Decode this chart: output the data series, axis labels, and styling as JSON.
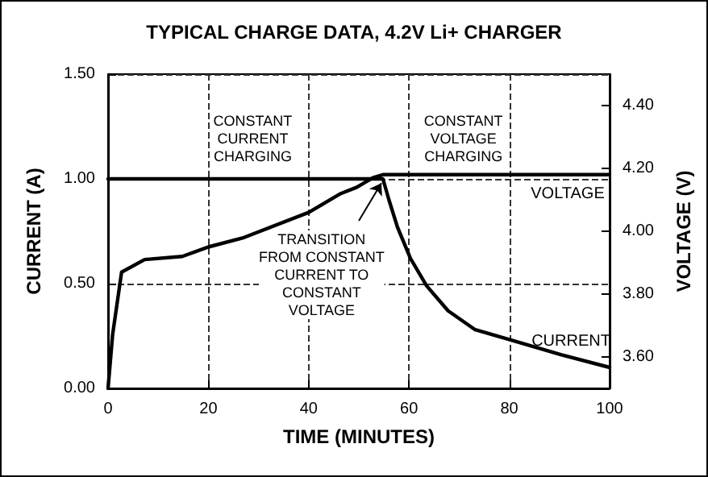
{
  "chart_data": {
    "type": "line",
    "title": "TYPICAL CHARGE DATA, 4.2V Li+ CHARGER",
    "xlabel": "TIME (MINUTES)",
    "ylabel": "CURRENT (A)",
    "y2label": "VOLTAGE (V)",
    "xlim": [
      0,
      100
    ],
    "xticks": [
      0,
      20,
      40,
      60,
      80,
      100
    ],
    "ylim": [
      0,
      1.5
    ],
    "yticks": [
      {
        "value": 0,
        "label": "0.00"
      },
      {
        "value": 0.5,
        "label": "0.50"
      },
      {
        "value": 1,
        "label": "1.00"
      },
      {
        "value": 1.5,
        "label": "1.50"
      }
    ],
    "y2lim": [
      3.5,
      4.5
    ],
    "y2ticks": [
      {
        "value": 3.6,
        "label": "3.60"
      },
      {
        "value": 3.8,
        "label": "3.80"
      },
      {
        "value": 4,
        "label": "4.00"
      },
      {
        "value": 4.2,
        "label": "4.20"
      },
      {
        "value": 4.4,
        "label": "4.40"
      }
    ],
    "series": [
      {
        "name": "CURRENT",
        "color": "#000000",
        "x": [
          0,
          54.8,
          56,
          57.7,
          60.3,
          63.5,
          67.8,
          73.2,
          80.4,
          90.4,
          100
        ],
        "values": [
          1.0,
          1.0,
          0.9,
          0.77,
          0.62,
          0.49,
          0.37,
          0.28,
          0.23,
          0.16,
          0.1
        ]
      },
      {
        "name": "VOLTAGE",
        "axis": "y2",
        "color": "#000000",
        "x": [
          0,
          0.9,
          2.7,
          7.3,
          14.8,
          20,
          27.1,
          40,
          46.4,
          49.6,
          52.8,
          54.8,
          100
        ],
        "values": [
          3.5,
          3.67,
          3.87,
          3.91,
          3.92,
          3.95,
          3.98,
          4.06,
          4.12,
          4.14,
          4.17,
          4.18,
          4.18
        ]
      }
    ],
    "annotations": [
      "CONSTANT\nCURRENT\nCHARGING",
      "CONSTANT\nVOLTAGE\nCHARGING",
      {
        "text": "TRANSITION\nFROM CONSTANT\nCURRENT TO\nCONSTANT\nVOLTAGE",
        "x": 55,
        "y": 1.0
      }
    ],
    "grid": true,
    "marker": "none",
    "line_style": "solid"
  }
}
